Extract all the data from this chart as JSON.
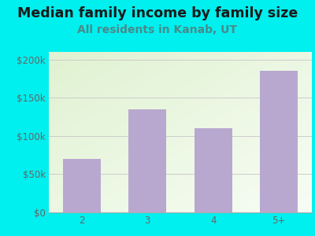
{
  "title": "Median family income by family size",
  "subtitle": "All residents in Kanab, UT",
  "categories": [
    "2",
    "3",
    "4",
    "5+"
  ],
  "values": [
    70000,
    135000,
    110000,
    185000
  ],
  "bar_color": "#b8a8d0",
  "background_color": "#00EFEF",
  "plot_bg_color_topleft": [
    0.88,
    0.95,
    0.82
  ],
  "plot_bg_color_bottomright": [
    0.97,
    0.99,
    0.96
  ],
  "title_color": "#1a1a1a",
  "subtitle_color": "#4a8a8a",
  "tick_color": "#666666",
  "axis_color": "#aaaaaa",
  "grid_color": "#cccccc",
  "ylim": [
    0,
    210000
  ],
  "yticks": [
    0,
    50000,
    100000,
    150000,
    200000
  ],
  "ytick_labels": [
    "$0",
    "$50k",
    "$100k",
    "$150k",
    "$200k"
  ],
  "title_fontsize": 12.5,
  "subtitle_fontsize": 10,
  "tick_fontsize": 8.5
}
